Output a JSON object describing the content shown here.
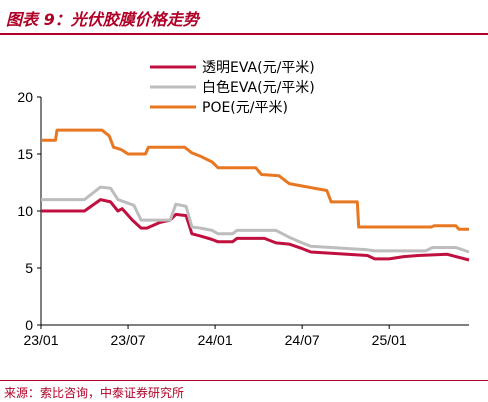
{
  "header": {
    "title": "图表 9：光伏胶膜价格走势"
  },
  "footer": {
    "source": "来源：索比咨询，中泰证券研究所"
  },
  "chart_data": {
    "type": "line",
    "title": "",
    "xlabel": "",
    "ylabel": "",
    "ylim": [
      0,
      20
    ],
    "yticks": [
      "0",
      "5",
      "10",
      "15",
      "20"
    ],
    "xticks": [
      "23/01",
      "23/07",
      "24/01",
      "24/07",
      "25/01"
    ],
    "xtick_months": [
      0,
      6,
      12,
      18,
      24
    ],
    "xlim_months": [
      0,
      29.5
    ],
    "grid": false,
    "legend_position": "top-right",
    "series": [
      {
        "name": "透明EVA(元/平米)",
        "color": "#c0103f",
        "points": [
          [
            0,
            10.0
          ],
          [
            3,
            10.0
          ],
          [
            4.1,
            11.0
          ],
          [
            4.8,
            10.8
          ],
          [
            5.3,
            10.0
          ],
          [
            5.6,
            10.2
          ],
          [
            6.3,
            9.2
          ],
          [
            6.9,
            8.5
          ],
          [
            7.3,
            8.5
          ],
          [
            8.2,
            9.0
          ],
          [
            8.9,
            9.2
          ],
          [
            9.3,
            9.7
          ],
          [
            10,
            9.6
          ],
          [
            10.4,
            8.0
          ],
          [
            11,
            7.8
          ],
          [
            11.8,
            7.5
          ],
          [
            12.2,
            7.3
          ],
          [
            13.2,
            7.3
          ],
          [
            13.5,
            7.6
          ],
          [
            15.4,
            7.6
          ],
          [
            16.2,
            7.2
          ],
          [
            17.1,
            7.1
          ],
          [
            18,
            6.7
          ],
          [
            18.6,
            6.4
          ],
          [
            22.5,
            6.1
          ],
          [
            23,
            5.8
          ],
          [
            24,
            5.8
          ],
          [
            25,
            6.0
          ],
          [
            26,
            6.1
          ],
          [
            28,
            6.2
          ],
          [
            28.6,
            6.0
          ],
          [
            29.5,
            5.7
          ]
        ]
      },
      {
        "name": "白色EVA(元/平米)",
        "color": "#bdbdbd",
        "points": [
          [
            0,
            11.0
          ],
          [
            3,
            11.0
          ],
          [
            4.1,
            12.1
          ],
          [
            4.8,
            12.0
          ],
          [
            5.3,
            11.0
          ],
          [
            6.4,
            10.5
          ],
          [
            6.9,
            9.2
          ],
          [
            8.9,
            9.2
          ],
          [
            9.3,
            10.6
          ],
          [
            10,
            10.4
          ],
          [
            10.4,
            8.6
          ],
          [
            11,
            8.5
          ],
          [
            11.8,
            8.3
          ],
          [
            12.2,
            8.0
          ],
          [
            13.2,
            8.0
          ],
          [
            13.5,
            8.3
          ],
          [
            16.2,
            8.3
          ],
          [
            17.1,
            7.7
          ],
          [
            18,
            7.2
          ],
          [
            18.6,
            6.9
          ],
          [
            22.5,
            6.6
          ],
          [
            23,
            6.5
          ],
          [
            26.5,
            6.5
          ],
          [
            27,
            6.8
          ],
          [
            28.6,
            6.8
          ],
          [
            29.5,
            6.4
          ]
        ]
      },
      {
        "name": "POE(元/平米)",
        "color": "#e87722",
        "points": [
          [
            0,
            16.2
          ],
          [
            1,
            16.2
          ],
          [
            1.1,
            17.1
          ],
          [
            4.2,
            17.1
          ],
          [
            4.7,
            16.6
          ],
          [
            5,
            15.6
          ],
          [
            5.5,
            15.4
          ],
          [
            6,
            15.0
          ],
          [
            7.2,
            15.0
          ],
          [
            7.4,
            15.6
          ],
          [
            9.9,
            15.6
          ],
          [
            10.4,
            15.1
          ],
          [
            11,
            14.8
          ],
          [
            11.8,
            14.3
          ],
          [
            12.2,
            13.8
          ],
          [
            14.8,
            13.8
          ],
          [
            15.2,
            13.2
          ],
          [
            16.4,
            13.1
          ],
          [
            17.1,
            12.4
          ],
          [
            19.7,
            11.8
          ],
          [
            20,
            10.8
          ],
          [
            21.8,
            10.8
          ],
          [
            21.9,
            8.6
          ],
          [
            26.9,
            8.6
          ],
          [
            27.1,
            8.7
          ],
          [
            28.6,
            8.7
          ],
          [
            28.8,
            8.4
          ],
          [
            29.5,
            8.4
          ]
        ]
      }
    ]
  }
}
